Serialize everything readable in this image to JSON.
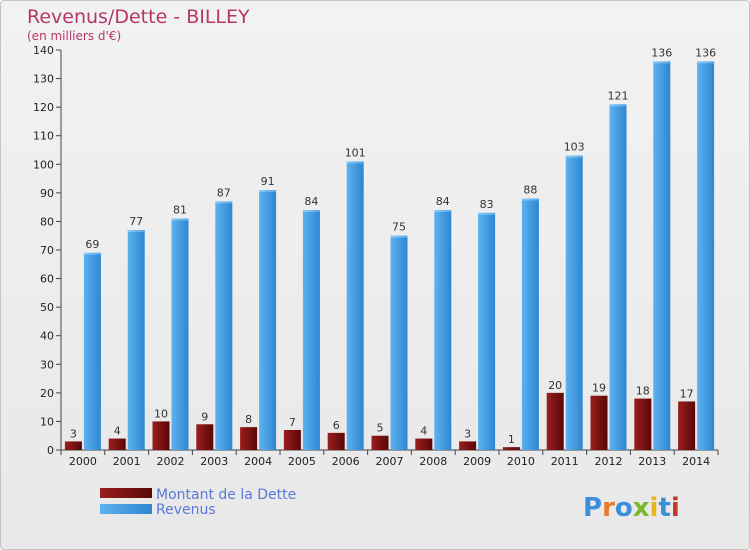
{
  "chart_data": {
    "type": "bar",
    "title": "Revenus/Dette - BILLEY",
    "subtitle": "(en milliers d'€)",
    "categories": [
      "2000",
      "2001",
      "2002",
      "2003",
      "2004",
      "2005",
      "2006",
      "2007",
      "2008",
      "2009",
      "2010",
      "2011",
      "2012",
      "2013",
      "2014"
    ],
    "series": [
      {
        "name": "Montant de la Dette",
        "color": "#7a0f0f",
        "values": [
          3,
          4,
          10,
          9,
          8,
          7,
          6,
          5,
          4,
          3,
          1,
          20,
          19,
          18,
          17
        ]
      },
      {
        "name": "Revenus",
        "color": "#4aa3e6",
        "values": [
          69,
          77,
          81,
          87,
          91,
          84,
          101,
          75,
          84,
          83,
          88,
          103,
          121,
          136,
          136
        ]
      }
    ],
    "ylim": [
      0,
      140
    ],
    "yticks": [
      0,
      10,
      20,
      30,
      40,
      50,
      60,
      70,
      80,
      90,
      100,
      110,
      120,
      130,
      140
    ],
    "grid": false,
    "legend_position": "bottom-left"
  },
  "logo": {
    "text": "Proxiti",
    "colors": [
      "#3a8fd8",
      "#e8782a",
      "#3a8fd8",
      "#7ab82e",
      "#e8b420",
      "#3a8fd8",
      "#c0392b"
    ]
  }
}
